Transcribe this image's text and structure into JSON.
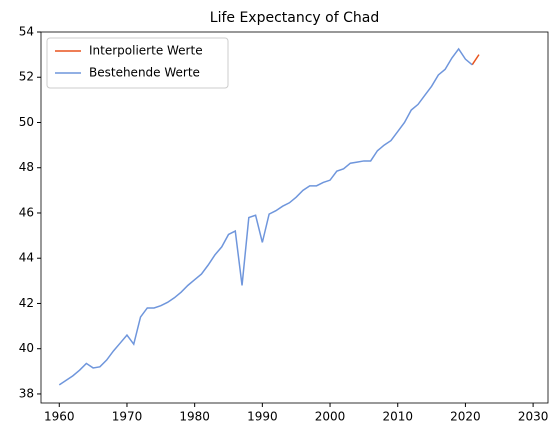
{
  "chart_data": {
    "type": "line",
    "title": "Life Expectancy of Chad",
    "x": [
      1960,
      1961,
      1962,
      1963,
      1964,
      1965,
      1966,
      1967,
      1968,
      1969,
      1970,
      1971,
      1972,
      1973,
      1974,
      1975,
      1976,
      1977,
      1978,
      1979,
      1980,
      1981,
      1982,
      1983,
      1984,
      1985,
      1986,
      1987,
      1988,
      1989,
      1990,
      1991,
      1992,
      1993,
      1994,
      1995,
      1996,
      1997,
      1998,
      1999,
      2000,
      2001,
      2002,
      2003,
      2004,
      2005,
      2006,
      2007,
      2008,
      2009,
      2010,
      2011,
      2012,
      2013,
      2014,
      2015,
      2016,
      2017,
      2018,
      2019,
      2020,
      2021,
      2022
    ],
    "series": [
      {
        "name": "Interpolierte Werte",
        "color": "#e8541e",
        "values": [
          null,
          null,
          null,
          null,
          null,
          null,
          null,
          null,
          null,
          null,
          null,
          null,
          null,
          null,
          null,
          null,
          null,
          null,
          null,
          null,
          null,
          null,
          null,
          null,
          null,
          null,
          null,
          null,
          null,
          null,
          null,
          null,
          null,
          null,
          null,
          null,
          null,
          null,
          null,
          null,
          null,
          null,
          null,
          null,
          null,
          null,
          null,
          null,
          null,
          null,
          null,
          null,
          null,
          null,
          null,
          null,
          null,
          null,
          null,
          null,
          null,
          52.55,
          53.0
        ]
      },
      {
        "name": "Bestehende Werte",
        "color": "#6f96dc",
        "values": [
          38.4,
          38.6,
          38.8,
          39.05,
          39.35,
          39.15,
          39.2,
          39.5,
          39.9,
          40.25,
          40.6,
          40.2,
          41.4,
          41.8,
          41.8,
          41.9,
          42.05,
          42.25,
          42.5,
          42.8,
          43.05,
          43.3,
          43.7,
          44.15,
          44.5,
          45.05,
          45.2,
          42.8,
          45.8,
          45.9,
          44.7,
          45.95,
          46.1,
          46.3,
          46.45,
          46.7,
          47.0,
          47.2,
          47.2,
          47.35,
          47.45,
          47.85,
          47.95,
          48.2,
          48.25,
          48.3,
          48.3,
          48.75,
          49.0,
          49.2,
          49.6,
          50.0,
          50.55,
          50.8,
          51.2,
          51.6,
          52.1,
          52.35,
          52.85,
          53.25,
          52.8,
          52.55,
          null
        ]
      }
    ],
    "xlim": [
      1957.3,
      2032.2
    ],
    "xticks": [
      1960,
      1970,
      1980,
      1990,
      2000,
      2010,
      2020,
      2030
    ],
    "ylim": [
      37.6,
      54.0
    ],
    "yticks": [
      38,
      40,
      42,
      44,
      46,
      48,
      50,
      52,
      54
    ],
    "grid": false,
    "legend": "upper left"
  }
}
